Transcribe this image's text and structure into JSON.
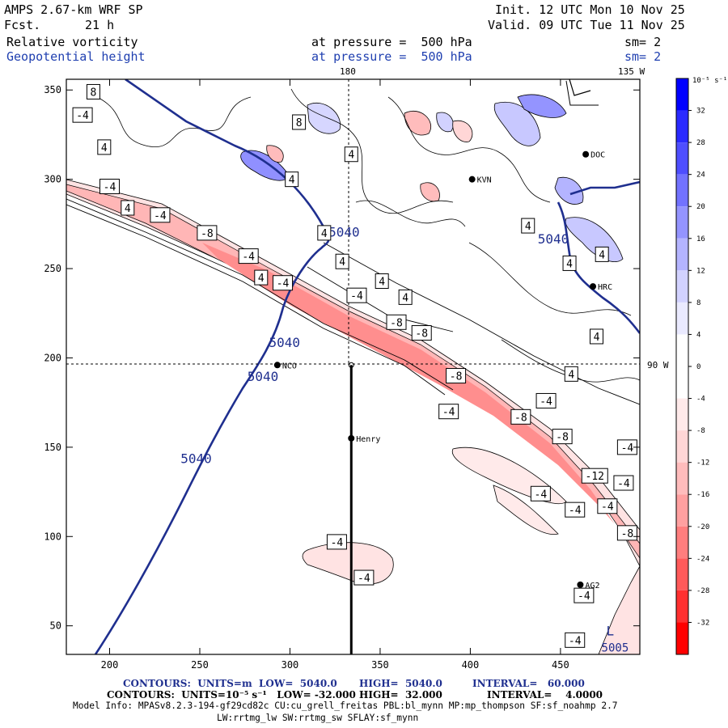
{
  "header": {
    "model": "AMPS 2.67-km WRF SP",
    "forecast_label": "Fcst.",
    "forecast_value": "21 h",
    "init": "Init. 12 UTC Mon 10 Nov 25",
    "valid": "Valid. 09 UTC Tue 11 Nov 25",
    "field1": "Relative vorticity",
    "field2": "Geopotential height",
    "level1": "at pressure =  500 hPa",
    "level2": "at pressure =  500 hPa",
    "smooth1": "sm= 2",
    "smooth2": "sm= 2"
  },
  "colorbar": {
    "unit": "10⁻⁵ s⁻¹",
    "levels": [
      -36,
      -32,
      -28,
      -24,
      -20,
      -16,
      -12,
      -8,
      -4,
      0,
      4,
      8,
      12,
      16,
      20,
      24,
      28,
      32,
      36
    ],
    "tick_labels": [
      "32",
      "28",
      "24",
      "20",
      "16",
      "12",
      "8",
      "4",
      "0",
      "-4",
      "-8",
      "-12",
      "-16",
      "-20",
      "-24",
      "-28",
      "-32"
    ],
    "colors": [
      "#ff0000",
      "#ff3030",
      "#ff5a5a",
      "#ff7e7e",
      "#ffa0a0",
      "#ffbcbc",
      "#ffd6d6",
      "#ffeaea",
      "#ffffff",
      "#ffffff",
      "#eaeaff",
      "#d2d2ff",
      "#b4b4ff",
      "#9494ff",
      "#7272ff",
      "#4e4eff",
      "#2a2aff",
      "#0000ff"
    ]
  },
  "chart_data": {
    "type": "contour-map",
    "x_ticks": [
      200,
      250,
      300,
      350,
      400,
      450
    ],
    "y_ticks": [
      50,
      100,
      150,
      200,
      250,
      300,
      350
    ],
    "xlim": [
      176,
      494
    ],
    "ylim": [
      34,
      356
    ],
    "crosshair": {
      "x": 334,
      "y": 196
    },
    "meridian_labels": {
      "top_180": "180",
      "top_135": "135 W",
      "right_90": "90 W"
    },
    "stations": [
      {
        "name": "NCO",
        "x": 293,
        "y": 196
      },
      {
        "name": "Henry",
        "x": 334,
        "y": 155
      },
      {
        "name": "KVN",
        "x": 401,
        "y": 300
      },
      {
        "name": "HRC",
        "x": 468,
        "y": 240
      },
      {
        "name": "DOC",
        "x": 464,
        "y": 314
      },
      {
        "name": "AG2",
        "x": 461,
        "y": 73
      }
    ],
    "transect": {
      "x": 334,
      "y_from": 196,
      "y_to": 34
    },
    "height_contour_label": "5040",
    "height_label_positions": [
      {
        "x": 248,
        "y": 141
      },
      {
        "x": 285,
        "y": 187
      },
      {
        "x": 297,
        "y": 206
      },
      {
        "x": 330,
        "y": 268
      },
      {
        "x": 446,
        "y": 264
      }
    ],
    "vort_labels": [
      {
        "t": "8",
        "x": 191,
        "y": 349
      },
      {
        "t": "-4",
        "x": 185,
        "y": 336
      },
      {
        "t": "4",
        "x": 197,
        "y": 318
      },
      {
        "t": "8",
        "x": 305,
        "y": 332
      },
      {
        "t": "4",
        "x": 301,
        "y": 300
      },
      {
        "t": "4",
        "x": 334,
        "y": 314
      },
      {
        "t": "-4",
        "x": 200,
        "y": 296
      },
      {
        "t": "4",
        "x": 210,
        "y": 284
      },
      {
        "t": "-4",
        "x": 228,
        "y": 280
      },
      {
        "t": "-8",
        "x": 254,
        "y": 270
      },
      {
        "t": "-4",
        "x": 277,
        "y": 257
      },
      {
        "t": "4",
        "x": 319,
        "y": 270
      },
      {
        "t": "4",
        "x": 284,
        "y": 245
      },
      {
        "t": "-4",
        "x": 296,
        "y": 242
      },
      {
        "t": "4",
        "x": 329,
        "y": 254
      },
      {
        "t": "4",
        "x": 351,
        "y": 243
      },
      {
        "t": "-4",
        "x": 337,
        "y": 235
      },
      {
        "t": "4",
        "x": 364,
        "y": 234
      },
      {
        "t": "-8",
        "x": 359,
        "y": 220
      },
      {
        "t": "-8",
        "x": 373,
        "y": 214
      },
      {
        "t": "4",
        "x": 432,
        "y": 274
      },
      {
        "t": "4",
        "x": 455,
        "y": 253
      },
      {
        "t": "4",
        "x": 473,
        "y": 258
      },
      {
        "t": "4",
        "x": 470,
        "y": 212
      },
      {
        "t": "4",
        "x": 456,
        "y": 191
      },
      {
        "t": "-8",
        "x": 392,
        "y": 190
      },
      {
        "t": "-4",
        "x": 442,
        "y": 176
      },
      {
        "t": "-4",
        "x": 388,
        "y": 170
      },
      {
        "t": "-8",
        "x": 428,
        "y": 167
      },
      {
        "t": "-8",
        "x": 451,
        "y": 156
      },
      {
        "t": "-4",
        "x": 487,
        "y": 150
      },
      {
        "t": "-12",
        "x": 469,
        "y": 134
      },
      {
        "t": "-4",
        "x": 439,
        "y": 124
      },
      {
        "t": "-4",
        "x": 458,
        "y": 115
      },
      {
        "t": "-4",
        "x": 485,
        "y": 130
      },
      {
        "t": "-4",
        "x": 476,
        "y": 117
      },
      {
        "t": "-8",
        "x": 487,
        "y": 102
      },
      {
        "t": "-4",
        "x": 326,
        "y": 97
      },
      {
        "t": "-4",
        "x": 341,
        "y": 77
      },
      {
        "t": "-4",
        "x": 463,
        "y": 67
      },
      {
        "t": "-4",
        "x": 458,
        "y": 42
      }
    ],
    "low_center": {
      "label": "L",
      "value": "5005",
      "x": 479,
      "y": 42
    }
  },
  "footer": {
    "line1_a": "CONTOURS:  UNITS=m  LOW=  5040.0",
    "line1_b": "HIGH=  5040.0",
    "line1_c": "INTERVAL=   60.000",
    "line2_a": "CONTOURS:  UNITS=10⁻⁵ s⁻¹   LOW= -32.000",
    "line2_b": "HIGH=  32.000",
    "line2_c": "INTERVAL=    4.0000",
    "model_info": "Model Info: MPASv8.2.3-194-gf29cd82c CU:cu_grell_freitas PBL:bl_mynn MP:mp_thompson SF:sf_noahmp 2.7",
    "physics": "LW:rrtmg_lw SW:rrtmg_sw SFLAY:sf_mynn"
  }
}
